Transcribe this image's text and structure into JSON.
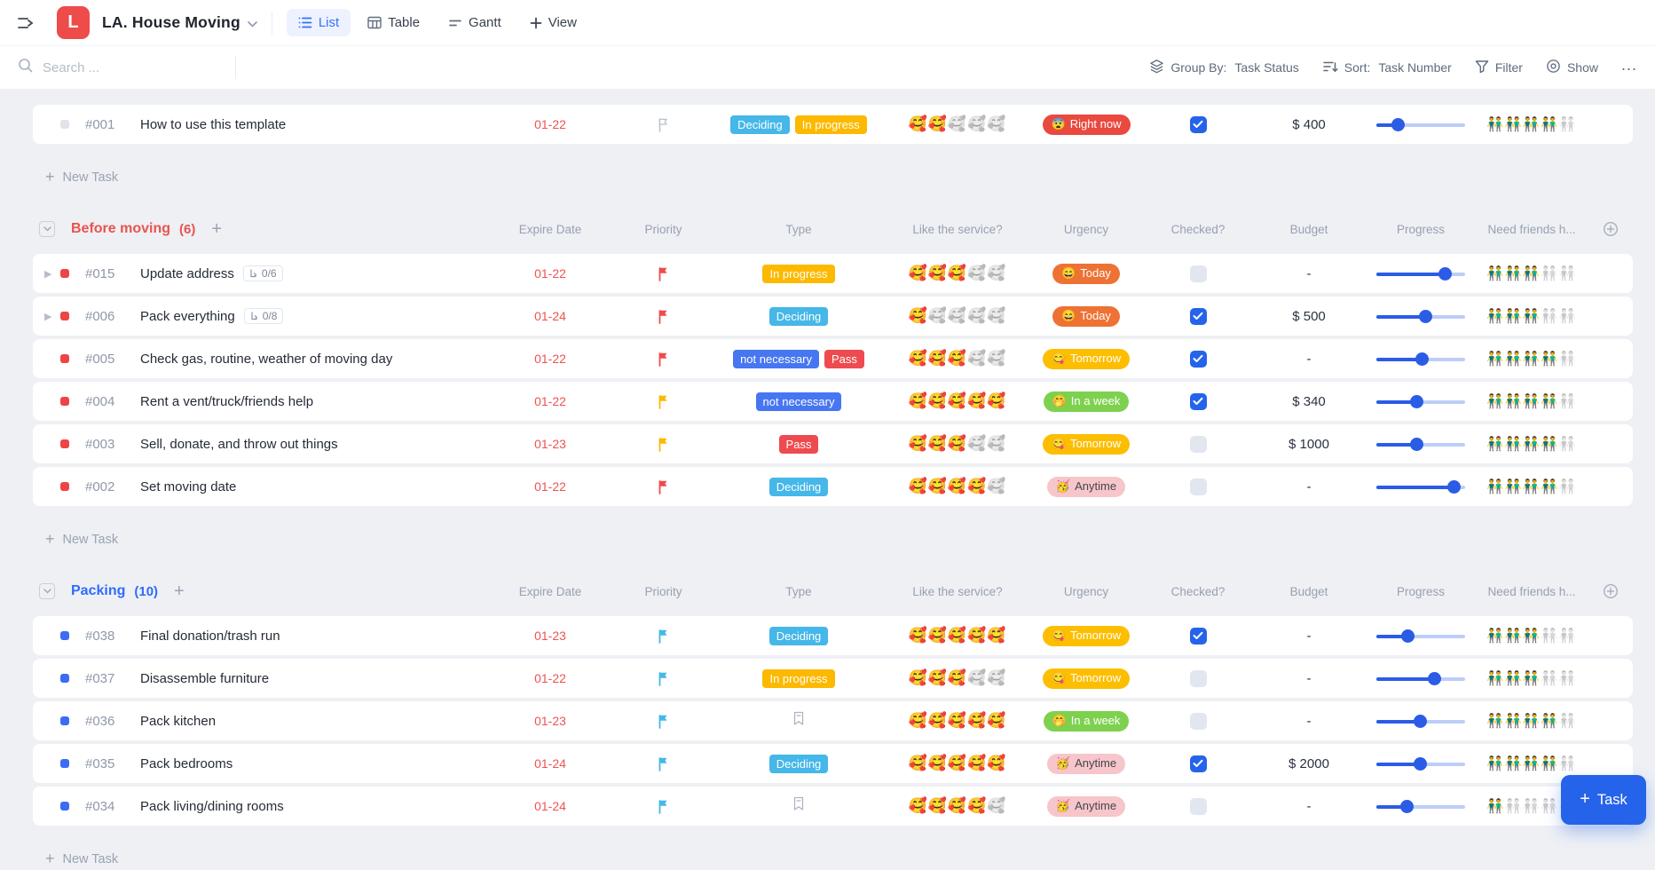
{
  "header": {
    "title": "LA. House Moving",
    "logo_letter": "L",
    "views": [
      {
        "label": "List",
        "active": true
      },
      {
        "label": "Table",
        "active": false
      },
      {
        "label": "Gantt",
        "active": false
      }
    ],
    "add_view_label": "View"
  },
  "toolbar": {
    "search_placeholder": "Search ...",
    "group_by_label": "Group By:",
    "group_by_value": "Task Status",
    "sort_label": "Sort:",
    "sort_value": "Task Number",
    "filter_label": "Filter",
    "show_label": "Show",
    "more_label": "..."
  },
  "columns": [
    "Expire Date",
    "Priority",
    "Type",
    "Like the service?",
    "Urgency",
    "Checked?",
    "Budget",
    "Progress",
    "Need friends h..."
  ],
  "new_task_label": "New Task",
  "fab": {
    "label": "Task"
  },
  "colors": {
    "accent_blue": "#2563eb",
    "accent_red": "#ee4b4b",
    "date_red": "#ef5350",
    "slider_fill": "#2b5ce6",
    "slider_track": "#bccdf8"
  },
  "flag_colors": {
    "red": "#ee4b4b",
    "yellow": "#fcb900",
    "blue": "#45b7e8",
    "none": "#b9c1cc"
  },
  "tag_styles": {
    "Deciding": "#45b7e8",
    "In progress": "#fcb900",
    "not necessary": "#4776f2",
    "Pass": "#ee4b50"
  },
  "urgency_styles": {
    "right_now": {
      "label": "Right now",
      "emoji": "😨",
      "bg": "#e9493f",
      "fg": "#ffffff"
    },
    "today": {
      "label": "Today",
      "emoji": "😄",
      "bg": "#ed7234",
      "fg": "#ffffff"
    },
    "tomorrow": {
      "label": "Tomorrow",
      "emoji": "😋",
      "bg": "#fdbe00",
      "fg": "#ffffff"
    },
    "in_a_week": {
      "label": "In a week",
      "emoji": "🤭",
      "bg": "#7ed14f",
      "fg": "#ffffff"
    },
    "anytime": {
      "label": "Anytime",
      "emoji": "🥳",
      "bg": "#f6c6ca",
      "fg": "#45454d"
    }
  },
  "rating_emoji": "🥰",
  "friends_emoji": "👬",
  "rating_max": 5,
  "groups": [
    {
      "name": null,
      "count": null,
      "color": null,
      "bullet": "#dfe3ea",
      "show_columns": false,
      "tasks": [
        {
          "id": "#001",
          "title": "How to use this template",
          "expand": false,
          "subtasks": null,
          "date": "01-22",
          "flag": "none",
          "tags": [
            "Deciding",
            "In progress"
          ],
          "type_icon": null,
          "service": 2,
          "urgency": "right_now",
          "checked": true,
          "budget": "$ 400",
          "progress": 25,
          "friends": 4
        }
      ]
    },
    {
      "name": "Before moving",
      "count": 6,
      "color": "#e8544d",
      "bullet": "#ee4444",
      "show_columns": true,
      "tasks": [
        {
          "id": "#015",
          "title": "Update address",
          "expand": true,
          "subtasks": "0/6",
          "date": "01-22",
          "flag": "red",
          "tags": [
            "In progress"
          ],
          "type_icon": null,
          "service": 3,
          "urgency": "today",
          "checked": false,
          "budget": "-",
          "progress": 78,
          "friends": 3
        },
        {
          "id": "#006",
          "title": "Pack everything",
          "expand": true,
          "subtasks": "0/8",
          "date": "01-24",
          "flag": "red",
          "tags": [
            "Deciding"
          ],
          "type_icon": null,
          "service": 1,
          "urgency": "today",
          "checked": true,
          "budget": "$ 500",
          "progress": 56,
          "friends": 3
        },
        {
          "id": "#005",
          "title": "Check gas, routine, weather of moving day",
          "expand": false,
          "subtasks": null,
          "date": "01-22",
          "flag": "red",
          "tags": [
            "not necessary",
            "Pass"
          ],
          "type_icon": null,
          "service": 3,
          "urgency": "tomorrow",
          "checked": true,
          "budget": "-",
          "progress": 52,
          "friends": 4
        },
        {
          "id": "#004",
          "title": "Rent a vent/truck/friends help",
          "expand": false,
          "subtasks": null,
          "date": "01-22",
          "flag": "yellow",
          "tags": [
            "not necessary"
          ],
          "type_icon": null,
          "service": 5,
          "urgency": "in_a_week",
          "checked": true,
          "budget": "$ 340",
          "progress": 46,
          "friends": 4
        },
        {
          "id": "#003",
          "title": "Sell, donate, and throw out things",
          "expand": false,
          "subtasks": null,
          "date": "01-23",
          "flag": "yellow",
          "tags": [
            "Pass"
          ],
          "type_icon": null,
          "service": 3,
          "urgency": "tomorrow",
          "checked": false,
          "budget": "$ 1000",
          "progress": 46,
          "friends": 4
        },
        {
          "id": "#002",
          "title": "Set moving date",
          "expand": false,
          "subtasks": null,
          "date": "01-22",
          "flag": "red",
          "tags": [
            "Deciding"
          ],
          "type_icon": null,
          "service": 4,
          "urgency": "anytime",
          "checked": false,
          "budget": "-",
          "progress": 88,
          "friends": 4
        }
      ]
    },
    {
      "name": "Packing",
      "count": 10,
      "color": "#2f6bff",
      "bullet": "#3e6bf4",
      "show_columns": true,
      "tasks": [
        {
          "id": "#038",
          "title": "Final donation/trash run",
          "expand": false,
          "subtasks": null,
          "date": "01-23",
          "flag": "blue",
          "tags": [
            "Deciding"
          ],
          "type_icon": null,
          "service": 5,
          "urgency": "tomorrow",
          "checked": true,
          "budget": "-",
          "progress": 36,
          "friends": 3
        },
        {
          "id": "#037",
          "title": "Disassemble furniture",
          "expand": false,
          "subtasks": null,
          "date": "01-22",
          "flag": "blue",
          "tags": [
            "In progress"
          ],
          "type_icon": null,
          "service": 3,
          "urgency": "tomorrow",
          "checked": false,
          "budget": "-",
          "progress": 66,
          "friends": 3
        },
        {
          "id": "#036",
          "title": "Pack kitchen",
          "expand": false,
          "subtasks": null,
          "date": "01-23",
          "flag": "blue",
          "tags": [],
          "type_icon": "bookmark",
          "service": 5,
          "urgency": "in_a_week",
          "checked": false,
          "budget": "-",
          "progress": 50,
          "friends": 4
        },
        {
          "id": "#035",
          "title": "Pack bedrooms",
          "expand": false,
          "subtasks": null,
          "date": "01-24",
          "flag": "blue",
          "tags": [
            "Deciding"
          ],
          "type_icon": null,
          "service": 5,
          "urgency": "anytime",
          "checked": true,
          "budget": "$ 2000",
          "progress": 50,
          "friends": 4
        },
        {
          "id": "#034",
          "title": "Pack living/dining rooms",
          "expand": false,
          "subtasks": null,
          "date": "01-24",
          "flag": "blue",
          "tags": [],
          "type_icon": "bookmark",
          "service": 4,
          "urgency": "anytime",
          "checked": false,
          "budget": "-",
          "progress": 35,
          "friends": 1
        }
      ]
    }
  ]
}
